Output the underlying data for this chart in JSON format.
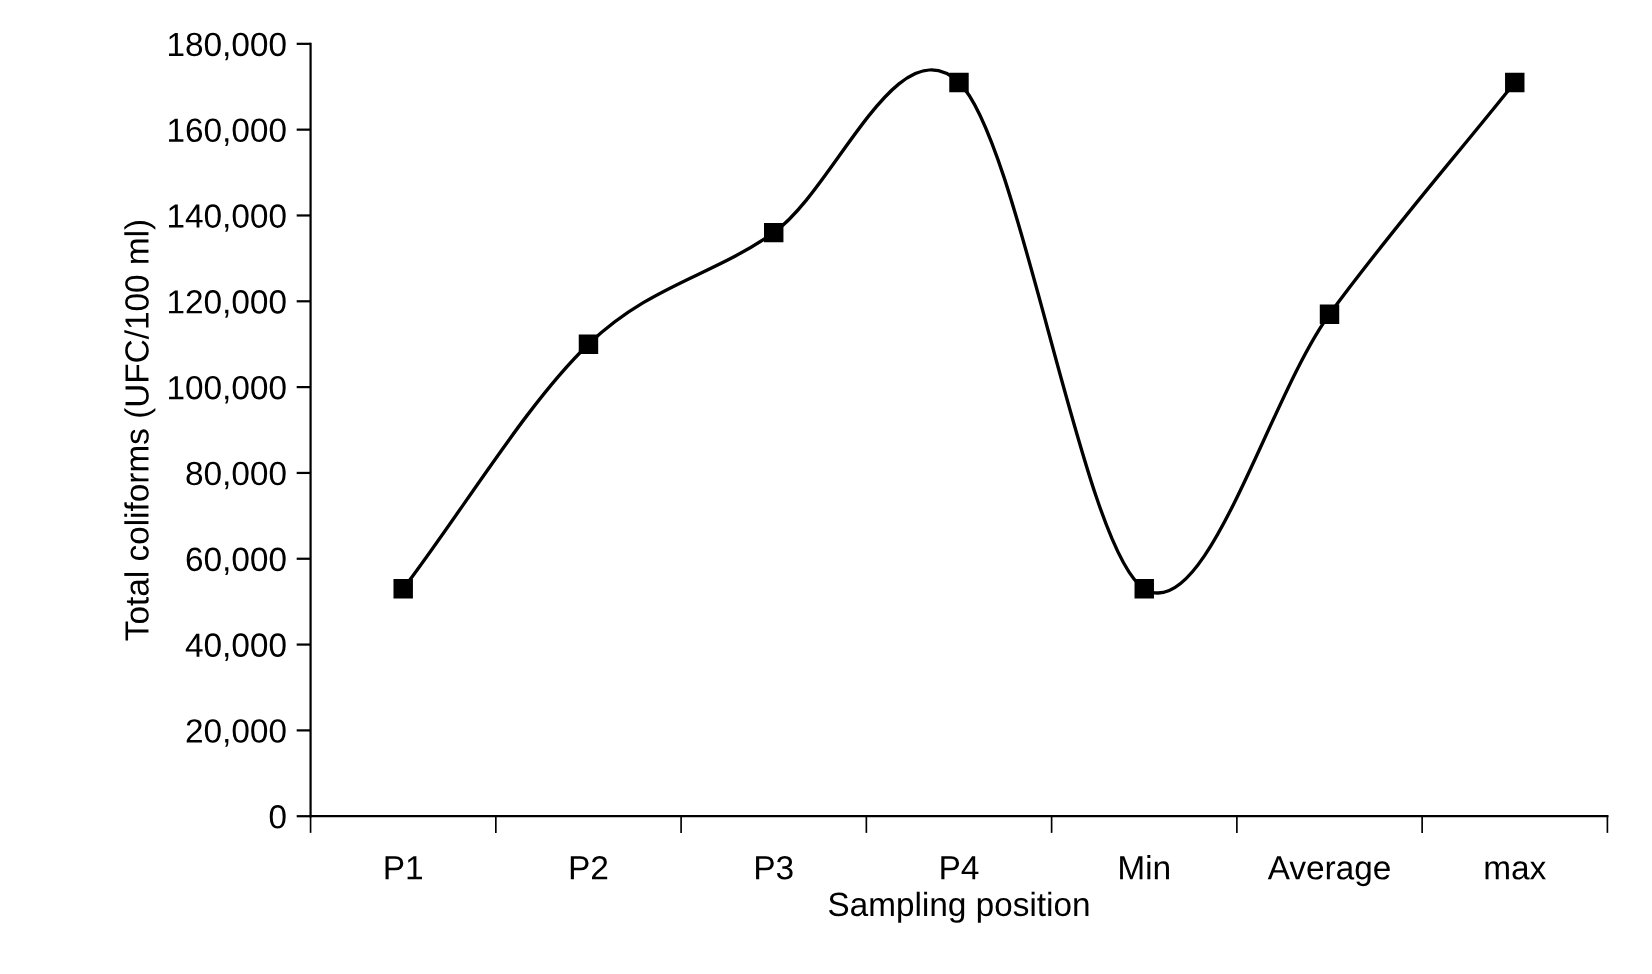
{
  "chart_data": {
    "type": "line",
    "xlabel": "Sampling position",
    "ylabel": "Total coliforms (UFC/100 ml)",
    "categories": [
      "P1",
      "P2",
      "P3",
      "P4",
      "Min",
      "Average",
      "max"
    ],
    "series": [
      {
        "color": "#000000",
        "values": [
          53000,
          110000,
          136000,
          171000,
          53000,
          117000,
          171000
        ]
      }
    ],
    "ylim": [
      0,
      180000
    ],
    "yticks": [
      {
        "value": 0,
        "label": "0"
      },
      {
        "value": 20000,
        "label": "20,000"
      },
      {
        "value": 40000,
        "label": "40,000"
      },
      {
        "value": 60000,
        "label": "60,000"
      },
      {
        "value": 80000,
        "label": "80,000"
      },
      {
        "value": 100000,
        "label": "100,000"
      },
      {
        "value": 120000,
        "label": "120,000"
      },
      {
        "value": 140000,
        "label": "140,000"
      },
      {
        "value": 160000,
        "label": "160,000"
      },
      {
        "value": 180000,
        "label": "180,000"
      }
    ],
    "marker": "square",
    "line_style": "solid",
    "grid": false,
    "legend": false
  }
}
